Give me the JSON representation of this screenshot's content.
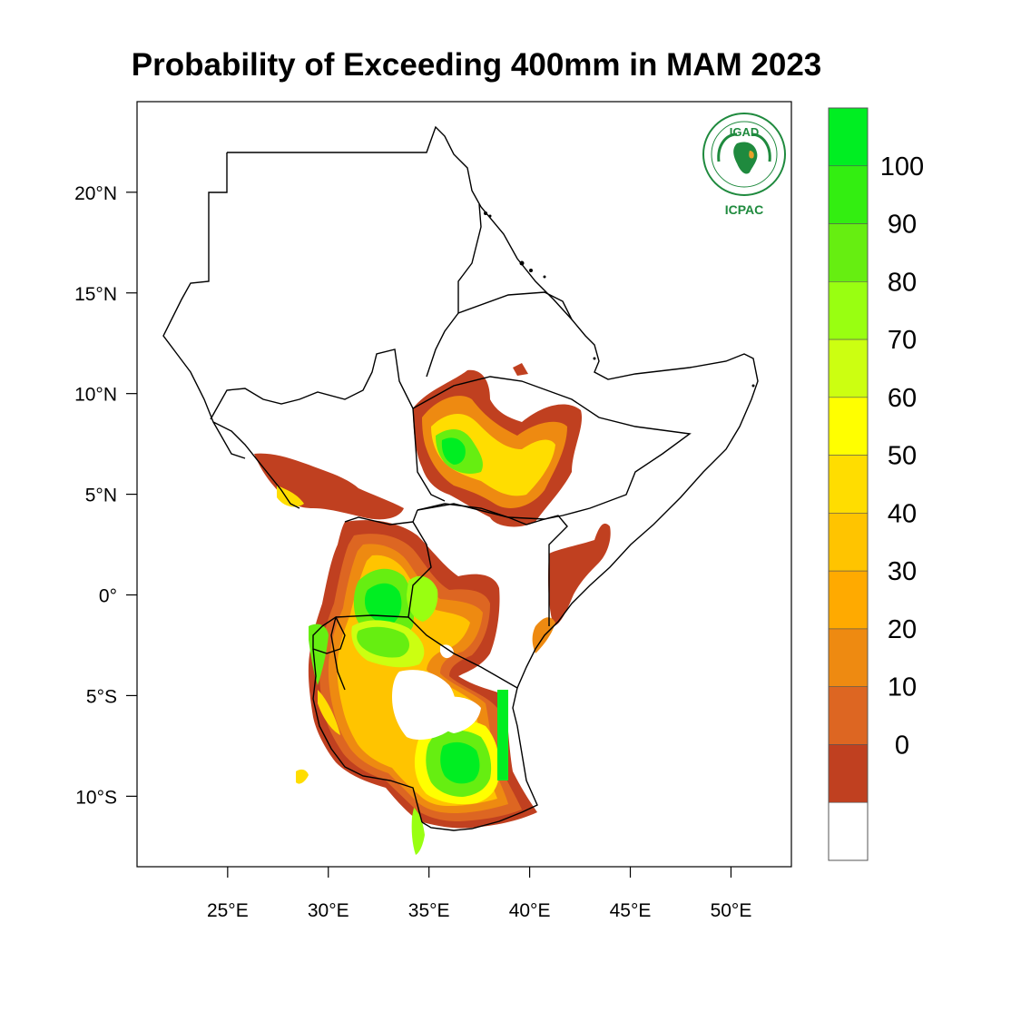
{
  "title": "Probability of Exceeding 400mm in MAM 2023",
  "logo": {
    "top_text": "IGAD",
    "bottom_text": "ICPAC",
    "color": "#1f8a3e",
    "accent": "#e8a02a"
  },
  "axes": {
    "x_ticks": [
      {
        "value": 25,
        "label": "25°E"
      },
      {
        "value": 30,
        "label": "30°E"
      },
      {
        "value": 35,
        "label": "35°E"
      },
      {
        "value": 40,
        "label": "40°E"
      },
      {
        "value": 45,
        "label": "45°E"
      },
      {
        "value": 50,
        "label": "50°E"
      }
    ],
    "y_ticks": [
      {
        "value": 20,
        "label": "20°N"
      },
      {
        "value": 15,
        "label": "15°N"
      },
      {
        "value": 10,
        "label": "10°N"
      },
      {
        "value": 5,
        "label": "5°N"
      },
      {
        "value": 0,
        "label": "0°"
      },
      {
        "value": -5,
        "label": "5°S"
      },
      {
        "value": -10,
        "label": "10°S"
      }
    ],
    "lon_range": [
      20.5,
      53
    ],
    "lat_range": [
      -13.5,
      24.5
    ]
  },
  "colorbar": {
    "labels": [
      "100",
      "90",
      "80",
      "70",
      "60",
      "50",
      "40",
      "30",
      "20",
      "10",
      "0"
    ],
    "colors_top_to_bottom": [
      "#00ee22",
      "#33ee11",
      "#66ee11",
      "#99ff11",
      "#ccff11",
      "#ffff00",
      "#ffdd00",
      "#ffc400",
      "#ffaa00",
      "#ee8a11",
      "#dd6622",
      "#c04020",
      "#ffffff"
    ]
  },
  "regions": {
    "ethiopia": "#cc5522",
    "somalia_sw": "#c04020",
    "uganda_rwanda": "#ee8a11",
    "tanzania": "#ee8a11",
    "south_sudan_sw": "#cc5522"
  }
}
